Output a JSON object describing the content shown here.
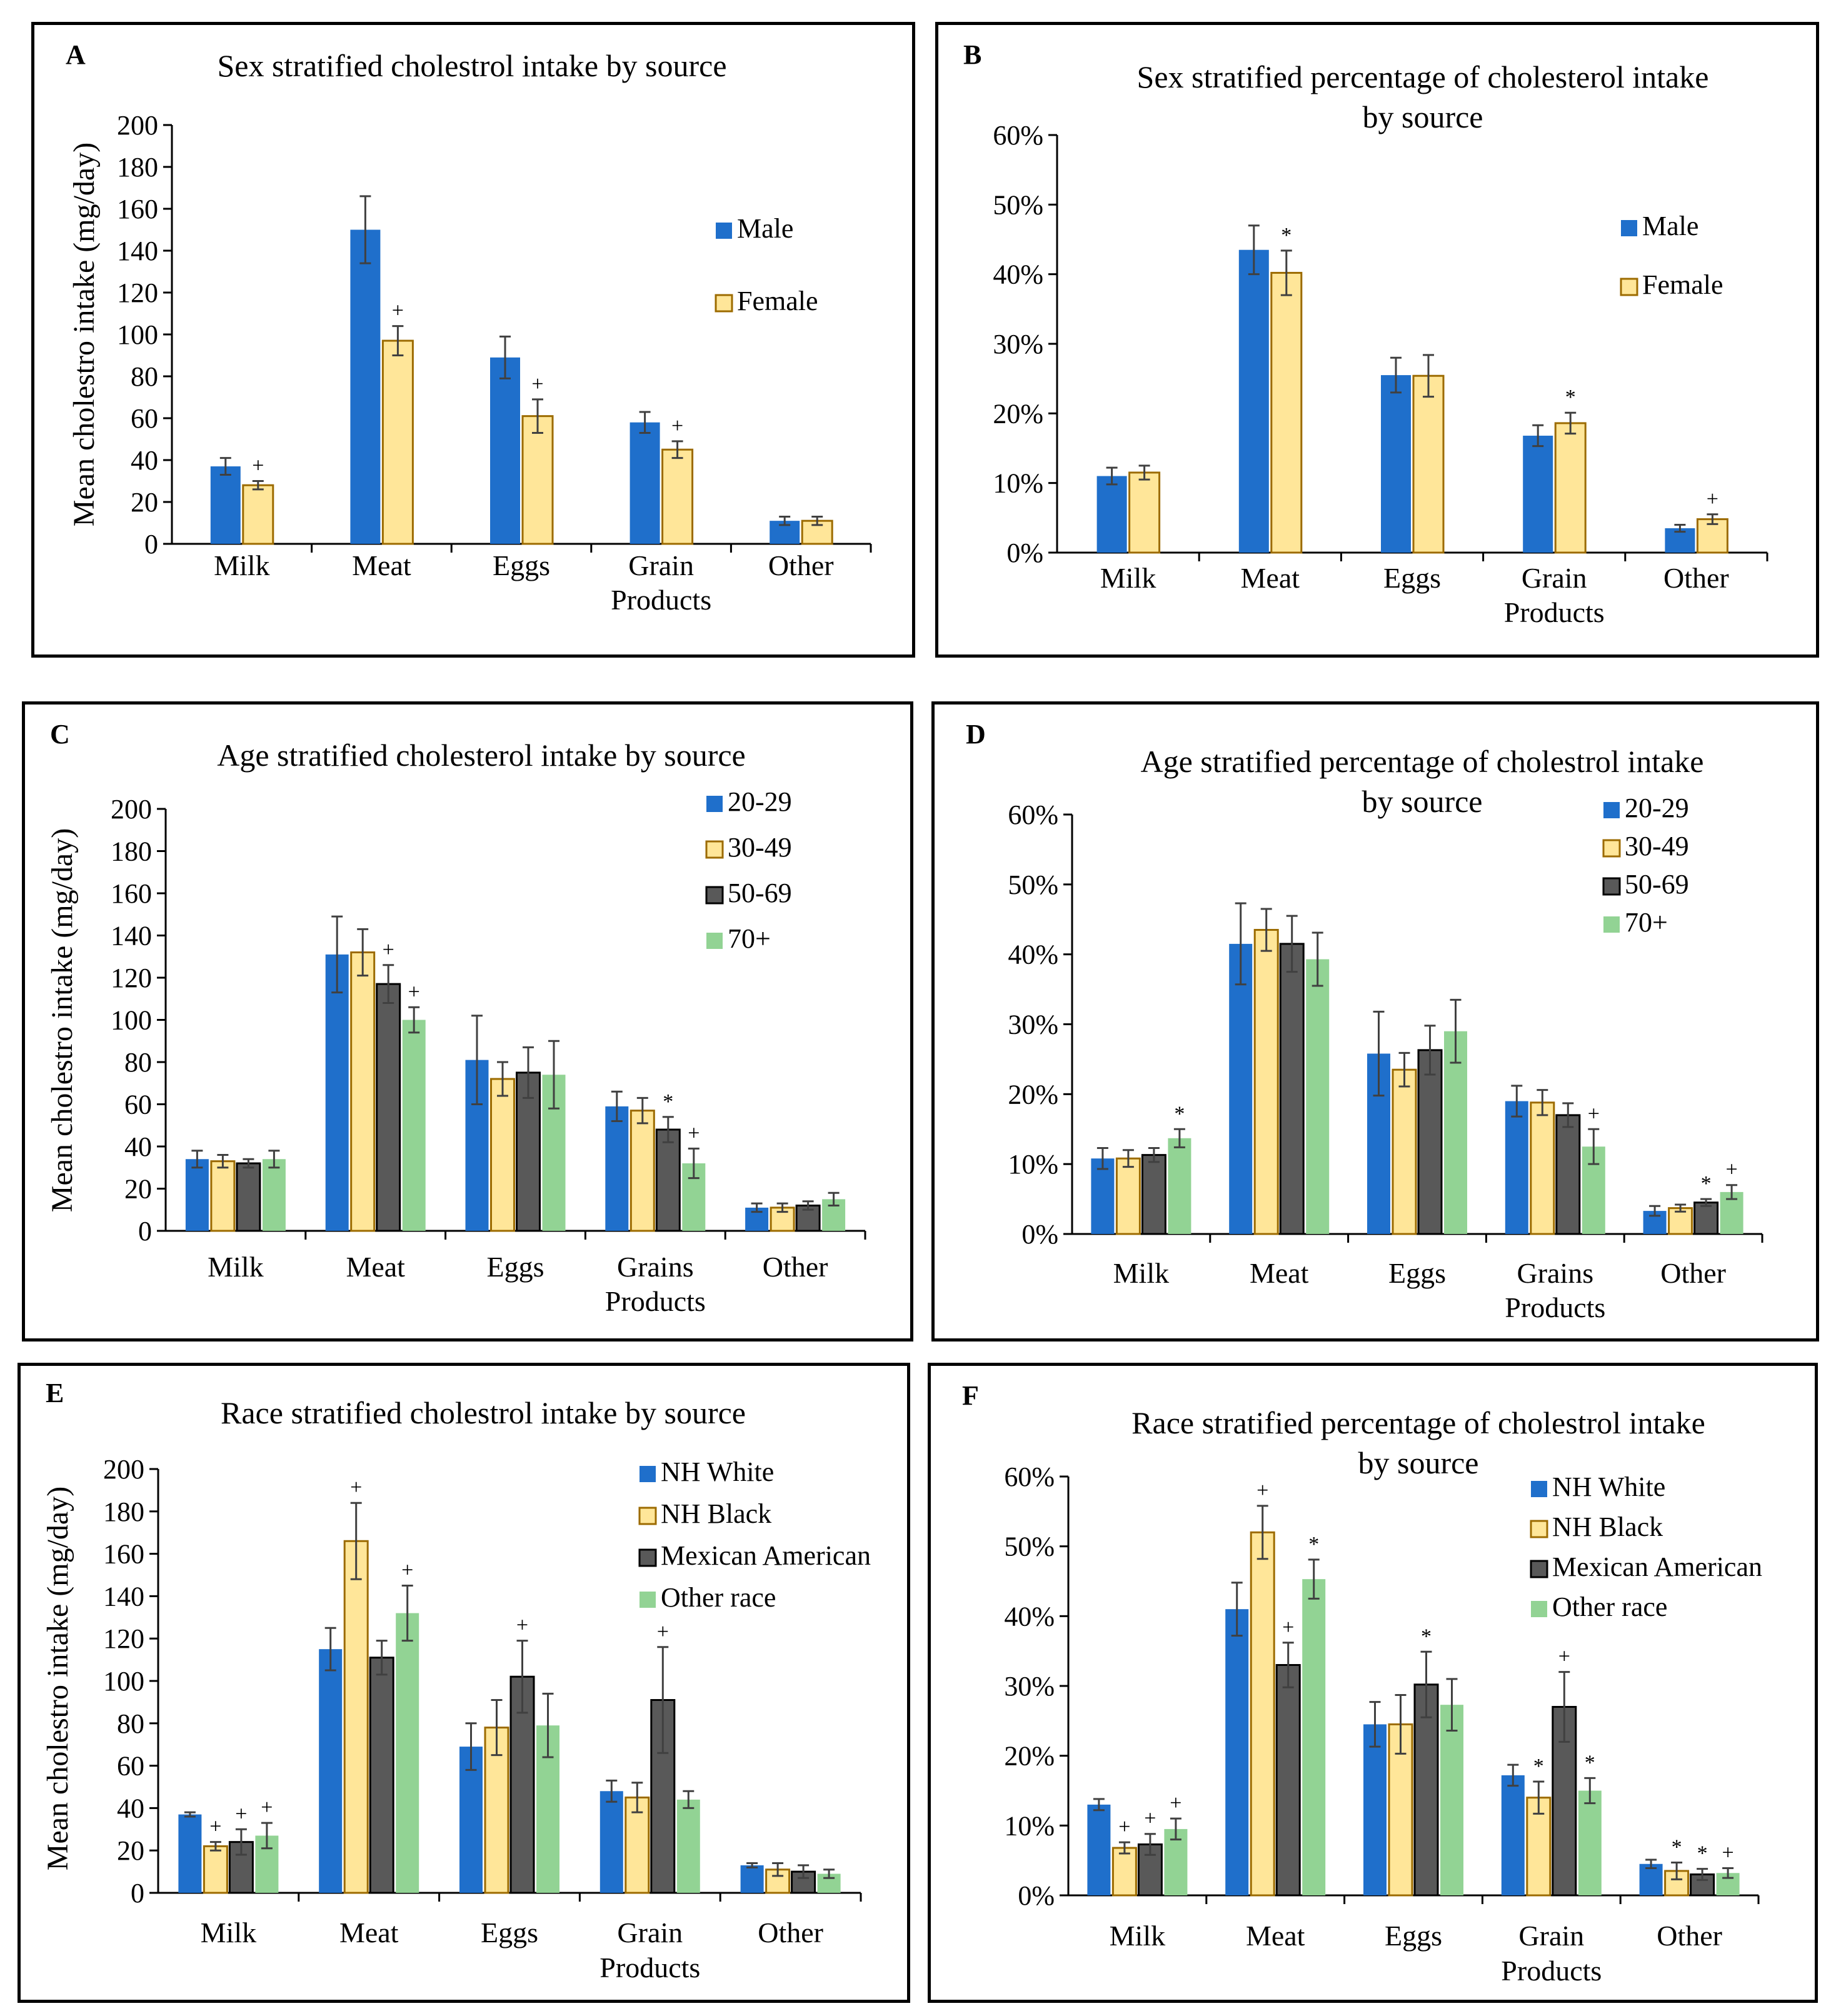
{
  "colors": {
    "male": "#1f6fcb",
    "female": "#ffe699",
    "female_edge": "#9c6b00",
    "c20": "#1f6fcb",
    "c30": "#ffe699",
    "c50": "#595959",
    "c70": "#92d394",
    "error": "#404040"
  },
  "chart_data": [
    {
      "panel_label": "A",
      "type": "bar",
      "title": "Sex stratified cholestrol intake by source",
      "ylabel": "Mean cholestro intake (mg/day)",
      "xlabel": "",
      "ylim": [
        0,
        200
      ],
      "y_ticks": [
        "0",
        "20",
        "40",
        "60",
        "80",
        "100",
        "120",
        "140",
        "160",
        "180",
        "200"
      ],
      "categories": [
        "Milk",
        "Meat",
        "Eggs",
        "Grain Products",
        "Other"
      ],
      "series": [
        {
          "name": "Male",
          "values": [
            37,
            150,
            89,
            58,
            11
          ],
          "errors": [
            4,
            16,
            10,
            5,
            2
          ],
          "marks": [
            "",
            "",
            "",
            "",
            ""
          ]
        },
        {
          "name": "Female",
          "values": [
            28,
            97,
            61,
            45,
            11
          ],
          "errors": [
            2,
            7,
            8,
            4,
            2
          ],
          "marks": [
            "+",
            "+",
            "+",
            "+",
            ""
          ]
        }
      ],
      "legend_position": "right"
    },
    {
      "panel_label": "B",
      "type": "bar",
      "title": "Sex stratified percentage of cholesterol intake by source",
      "ylabel": "",
      "xlabel": "",
      "ylim": [
        0,
        60
      ],
      "y_ticks": [
        "0%",
        "10%",
        "20%",
        "30%",
        "40%",
        "50%",
        "60%"
      ],
      "categories": [
        "Milk",
        "Meat",
        "Eggs",
        "Grain Products",
        "Other"
      ],
      "series": [
        {
          "name": "Male",
          "values": [
            11,
            43.5,
            25.5,
            16.8,
            3.5
          ],
          "errors": [
            1.2,
            3.5,
            2.5,
            1.5,
            0.5
          ],
          "marks": [
            "",
            "",
            "",
            "",
            ""
          ]
        },
        {
          "name": "Female",
          "values": [
            11.5,
            40.2,
            25.4,
            18.6,
            4.8
          ],
          "errors": [
            1,
            3.2,
            3,
            1.5,
            0.7
          ],
          "marks": [
            "",
            "*",
            "",
            "*",
            "+"
          ]
        }
      ],
      "legend_position": "right"
    },
    {
      "panel_label": "C",
      "type": "bar",
      "title": "Age stratified cholesterol intake by source",
      "ylabel": "Mean cholestro intake (mg/day)",
      "xlabel": "",
      "ylim": [
        0,
        200
      ],
      "y_ticks": [
        "0",
        "20",
        "40",
        "60",
        "80",
        "100",
        "120",
        "140",
        "160",
        "180",
        "200"
      ],
      "categories": [
        "Milk",
        "Meat",
        "Eggs",
        "Grains Products",
        "Other"
      ],
      "series": [
        {
          "name": "20-29",
          "values": [
            34,
            131,
            81,
            59,
            11
          ],
          "errors": [
            4,
            18,
            21,
            7,
            2
          ],
          "marks": [
            "",
            "",
            "",
            "",
            ""
          ]
        },
        {
          "name": "30-49",
          "values": [
            33,
            132,
            72,
            57,
            11
          ],
          "errors": [
            3,
            11,
            8,
            6,
            2
          ],
          "marks": [
            "",
            "",
            "",
            "",
            ""
          ]
        },
        {
          "name": "50-69",
          "values": [
            32,
            117,
            75,
            48,
            12
          ],
          "errors": [
            2,
            9,
            12,
            6,
            2
          ],
          "marks": [
            "",
            "+",
            "",
            "*",
            ""
          ]
        },
        {
          "name": "70+",
          "values": [
            34,
            100,
            74,
            32,
            15
          ],
          "errors": [
            4,
            6,
            16,
            7,
            3
          ],
          "marks": [
            "",
            "+",
            "",
            "+",
            ""
          ]
        }
      ],
      "legend_position": "top-right"
    },
    {
      "panel_label": "D",
      "type": "bar",
      "title": "Age stratified percentage of cholestrol intake by source",
      "ylabel": "",
      "xlabel": "",
      "ylim": [
        0,
        60
      ],
      "y_ticks": [
        "0%",
        "10%",
        "20%",
        "30%",
        "40%",
        "50%",
        "60%"
      ],
      "categories": [
        "Milk",
        "Meat",
        "Eggs",
        "Grains Products",
        "Other"
      ],
      "series": [
        {
          "name": "20-29",
          "values": [
            10.8,
            41.5,
            25.8,
            19,
            3.3
          ],
          "errors": [
            1.5,
            5.8,
            6,
            2.2,
            0.7
          ],
          "marks": [
            "",
            "",
            "",
            "",
            ""
          ]
        },
        {
          "name": "30-49",
          "values": [
            10.8,
            43.5,
            23.5,
            18.8,
            3.7
          ],
          "errors": [
            1.2,
            3,
            2.4,
            1.8,
            0.5
          ],
          "marks": [
            "",
            "",
            "",
            "",
            ""
          ]
        },
        {
          "name": "50-69",
          "values": [
            11.3,
            41.5,
            26.3,
            17,
            4.5
          ],
          "errors": [
            1,
            4,
            3.5,
            1.7,
            0.5
          ],
          "marks": [
            "",
            "",
            "",
            "",
            "*"
          ]
        },
        {
          "name": "70+",
          "values": [
            13.7,
            39.3,
            29,
            12.5,
            6
          ],
          "errors": [
            1.3,
            3.8,
            4.5,
            2.5,
            1
          ],
          "marks": [
            "*",
            "",
            "",
            "+",
            "+"
          ]
        }
      ],
      "legend_position": "top-right"
    },
    {
      "panel_label": "E",
      "type": "bar",
      "title": "Race stratified cholestrol intake by source",
      "ylabel": "Mean cholestro intake (mg/day)",
      "xlabel": "",
      "ylim": [
        0,
        200
      ],
      "y_ticks": [
        "0",
        "20",
        "40",
        "60",
        "80",
        "100",
        "120",
        "140",
        "160",
        "180",
        "200"
      ],
      "categories": [
        "Milk",
        "Meat",
        "Eggs",
        "Grain Products",
        "Other"
      ],
      "series": [
        {
          "name": "NH White",
          "values": [
            37,
            115,
            69,
            48,
            13
          ],
          "errors": [
            1,
            10,
            11,
            5,
            1
          ],
          "marks": [
            "",
            "",
            "",
            "",
            ""
          ]
        },
        {
          "name": "NH Black",
          "values": [
            22,
            166,
            78,
            45,
            11
          ],
          "errors": [
            2,
            18,
            13,
            7,
            3
          ],
          "marks": [
            "+",
            "+",
            "",
            "",
            ""
          ]
        },
        {
          "name": "Mexican American",
          "values": [
            24,
            111,
            102,
            91,
            10
          ],
          "errors": [
            6,
            8,
            17,
            25,
            3
          ],
          "marks": [
            "+",
            "",
            "+",
            "+",
            ""
          ]
        },
        {
          "name": "Other race",
          "values": [
            27,
            132,
            79,
            44,
            9
          ],
          "errors": [
            6,
            13,
            15,
            4,
            2
          ],
          "marks": [
            "+",
            "+",
            "",
            "",
            ""
          ]
        }
      ],
      "legend_position": "top-right"
    },
    {
      "panel_label": "F",
      "type": "bar",
      "title": "Race stratified percentage of cholestrol intake by source",
      "ylabel": "",
      "xlabel": "",
      "ylim": [
        0,
        60
      ],
      "y_ticks": [
        "0%",
        "10%",
        "20%",
        "30%",
        "40%",
        "50%",
        "60%"
      ],
      "categories": [
        "Milk",
        "Meat",
        "Eggs",
        "Grain Products",
        "Other"
      ],
      "series": [
        {
          "name": "NH White",
          "values": [
            13,
            41,
            24.5,
            17.2,
            4.5
          ],
          "errors": [
            0.8,
            3.8,
            3.2,
            1.5,
            0.6
          ],
          "marks": [
            "",
            "",
            "",
            "",
            ""
          ]
        },
        {
          "name": "NH Black",
          "values": [
            6.8,
            52,
            24.5,
            14,
            3.5
          ],
          "errors": [
            0.8,
            3.8,
            4.2,
            2.3,
            1.2
          ],
          "marks": [
            "+",
            "+",
            "",
            "*",
            "*"
          ]
        },
        {
          "name": "Mexican American",
          "values": [
            7.3,
            33,
            30.2,
            27,
            3
          ],
          "errors": [
            1.5,
            3.2,
            4.7,
            5,
            0.8
          ],
          "marks": [
            "+",
            "+",
            "*",
            "+",
            "*"
          ]
        },
        {
          "name": "Other race",
          "values": [
            9.5,
            45.3,
            27.3,
            15,
            3.2
          ],
          "errors": [
            1.5,
            2.8,
            3.7,
            1.8,
            0.7
          ],
          "marks": [
            "+",
            "*",
            "",
            "*",
            "+"
          ]
        }
      ],
      "legend_position": "top-right"
    }
  ]
}
